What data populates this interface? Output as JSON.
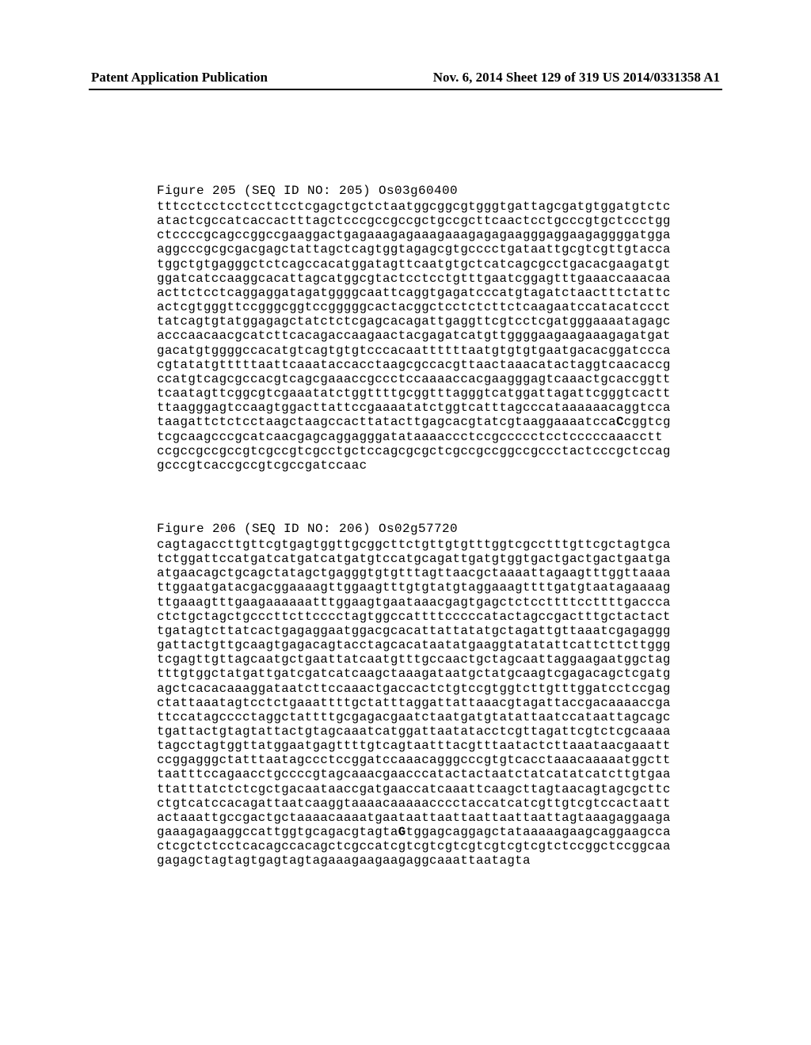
{
  "header": {
    "left": "Patent Application Publication",
    "right": "Nov. 6, 2014  Sheet 129 of 319   US 2014/0331358 A1"
  },
  "figures": [
    {
      "title": "Figure 205  (SEQ ID NO: 205) Os03g60400",
      "lines": [
        "tttcctcctcctccttcctcgagctgctctaatggcggcgtgggtgattagcgatgtggatgtctc",
        "atactcgccatcaccactttagctcccgccgccgctgccgcttcaactcctgcccgtgctccctgg",
        "ctccccgcagccggccgaaggactgagaaagagaaagaaagagagaagggaggaagaggggatgga",
        "aggcccgcgcgacgagctattagctcagtggtagagcgtgcccctgataattgcgtcgttgtacca",
        "tggctgtgagggctctcagccacatggatagttcaatgtgctcatcagcgcctgacacgaagatgt",
        "ggatcatccaaggcacattagcatggcgtactcctcctgtttgaatcggagtttgaaaccaaacaa",
        "acttctcctcaggaggatagatggggcaattcaggtgagatcccatgtagatctaactttctattc",
        "actcgtgggttccgggcggtccgggggcactacggctcctctcttctcaagaatccatacatccct",
        "tatcagtgtatggagagctatctctcgagcacagattgaggttcgtcctcgatgggaaaatagagc",
        "acccaacaacgcatcttcacagaccaagaactacgagatcatgttggggaagaagaaagagatgat",
        "gacatgtggggccacatgtcagtgtgtcccacaattttttaatgtgtgtgaatgacacggatccca",
        "cgtatatgtttttaattcaaataccacctaagcgccacgttaactaaacatactaggtcaacaccg",
        "ccatgtcagcgccacgtcagcgaaaccgccctccaaaaccacgaagggagtcaaactgcaccggtt",
        "tcaatagttcggcgtcgaaatatctggttttgcggtttagggtcatggattagattcgggtcactt",
        "ttaagggagtccaagtggacttattccgaaaatatctggtcatttagcccataaaaaacaggtcca",
        {
          "prefix": "taagattctctcctaagctaagccacttatacttgagcacgtatcgtaaggaaaatcca",
          "bold": "C",
          "suffix": "cggtcg"
        },
        "tcgcaagcccgcatcaacgagcaggagggatataaaaccctccgccccctcctcccccaaacctt",
        "ccgccgccgccgtcgccgtcgcctgctccagcgcgctcgccgccggccgccctactcccgctccag",
        "gcccgtcaccgccgtcgccgatccaac"
      ]
    },
    {
      "title": "Figure 206  (SEQ ID NO: 206) Os02g57720",
      "lines": [
        "cagtagaccttgttcgtgagtggttgcggcttctgttgtgtttggtcgcctttgttcgctagtgca",
        "tctggattccatgatcatgatcatgatgtccatgcagattgatgtggtgactgactgactgaatga",
        "atgaacagctgcagctatagctgagggtgtgtttagttaacgctaaaattagaagtttggttaaaa",
        "ttggaatgatacgacggaaaagttggaagtttgtgtatgtaggaaagttttgatgtaatagaaaag",
        "ttgaaagtttgaagaaaaaatttggaagtgaataaacgagtgagctctccttttccttttgaccca",
        "ctctgctagctgcccttcttcccctagtggccattttcccccatactagccgactttgctactact",
        "tgatagtcttatcactgagaggaatggacgcacattattatatgctagattgttaaatcgagaggg",
        "gattactgttgcaagtgagacagtacctagcacataatatgaaggtatatattcattcttcttggg",
        "tcgagttgttagcaatgctgaattatcaatgtttgccaactgctagcaattaggaagaatggctag",
        "tttgtggctatgattgatcgatcatcaagctaaagataatgctatgcaagtcgagacagctcgatg",
        "agctcacacaaaggataatcttccaaactgaccactctgtccgtggtcttgtttggatcctccgag",
        "ctattaaatagtcctctgaaattttgctatttaggattattaaacgtagattaccgacaaaaccga",
        "ttccatagcccctaggctattttgcgagacgaatctaatgatgtatattaatccataattagcagc",
        "tgattactgtagtattactgtagcaaatcatggattaatatacctcgttagattcgtctcgcaaaa",
        "tagcctagtggttatggaatgagttttgtcagtaatttacgtttaatactcttaaataacgaaatt",
        "ccggagggctatttaatagccctccggatccaaacagggcccgtgtcacctaaacaaaaatggctt",
        "taatttccagaacctgccccgtagcaaacgaacccatactactaatctatcatatcatcttgtgaa",
        "ttatttatctctcgctgacaataaccgatgaaccatcaaattcaagcttagtaacagtagcgcttc",
        "ctgtcatccacagattaatcaaggtaaaacaaaaacccctaccatcatcgttgtcgtccactaatt",
        "actaaattgccgactgctaaaacaaaatgaataattaattaattaattaattagtaaagaggaaga",
        {
          "prefix": "gaaagagaaggccattggtgcagacgtagta",
          "bold": "G",
          "suffix": "tggagcaggagctataaaaagaagcaggaagcca"
        },
        "ctcgctctcctcacagccacagctcgccatcgtcgtcgtcgtcgtcgtcgtctccggctccggcaa",
        "gagagctagtagtgagtagtagaaagaagaagaggcaaattaatagta"
      ]
    }
  ]
}
